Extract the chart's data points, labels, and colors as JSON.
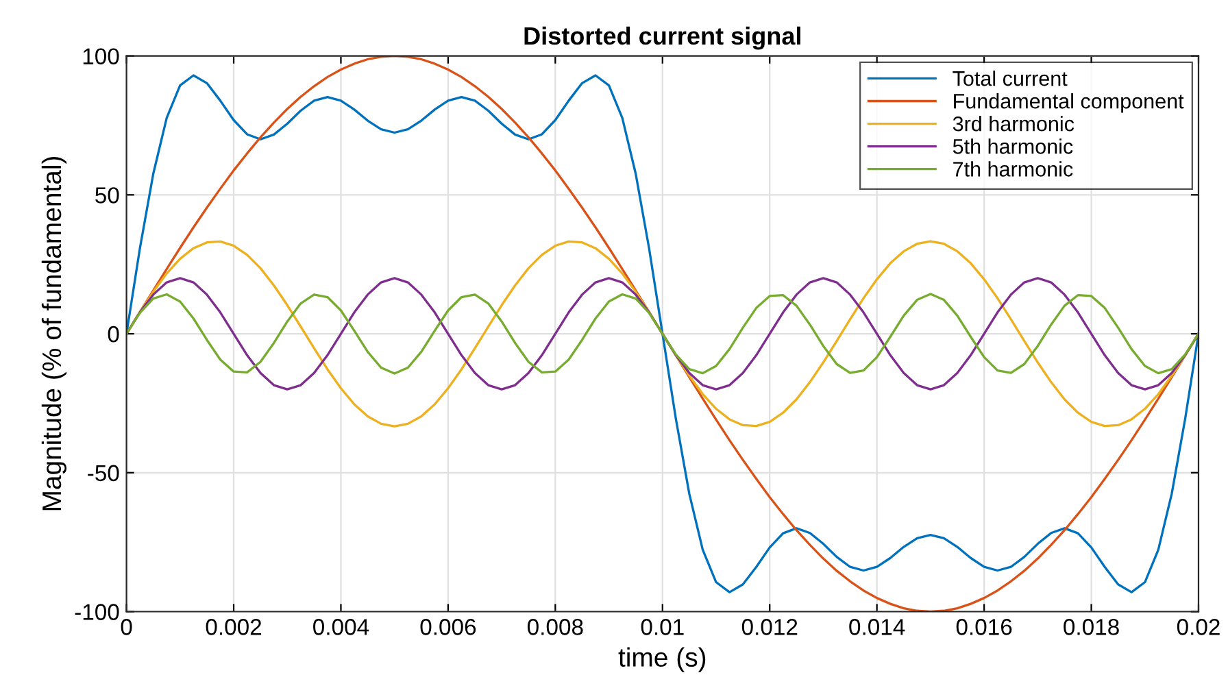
{
  "chart_data": {
    "type": "line",
    "title": "Distorted current signal",
    "xlabel": "time (s)",
    "ylabel": "Magnitude (% of fundamental)",
    "x": [
      0,
      0.00025,
      0.0005,
      0.00075,
      0.001,
      0.00125,
      0.0015,
      0.00175,
      0.002,
      0.00225,
      0.0025,
      0.00275,
      0.003,
      0.00325,
      0.0035,
      0.00375,
      0.004,
      0.00425,
      0.0045,
      0.00475,
      0.005,
      0.00525,
      0.0055,
      0.00575,
      0.006,
      0.00625,
      0.0065,
      0.00675,
      0.007,
      0.00725,
      0.0075,
      0.00775,
      0.008,
      0.00825,
      0.0085,
      0.00875,
      0.009,
      0.00925,
      0.0095,
      0.00975,
      0.01,
      0.01025,
      0.0105,
      0.01075,
      0.011,
      0.01125,
      0.0115,
      0.01175,
      0.012,
      0.01225,
      0.0125,
      0.01275,
      0.013,
      0.01325,
      0.0135,
      0.01375,
      0.014,
      0.01425,
      0.0145,
      0.01475,
      0.015,
      0.01525,
      0.0155,
      0.01575,
      0.016,
      0.01625,
      0.0165,
      0.01675,
      0.017,
      0.01725,
      0.0175,
      0.01775,
      0.018,
      0.01825,
      0.0185,
      0.01875,
      0.019,
      0.01925,
      0.0195,
      0.01975,
      0.02
    ],
    "series": [
      {
        "name": "Total current",
        "color": "#0072bd",
        "values": [
          0,
          30.7,
          57.6,
          77.7,
          89.4,
          93.0,
          90.2,
          83.9,
          76.9,
          71.8,
          70.0,
          71.7,
          75.6,
          80.3,
          83.9,
          85.2,
          83.9,
          80.7,
          76.7,
          73.6,
          72.4,
          73.6,
          76.7,
          80.7,
          83.9,
          85.2,
          83.9,
          80.3,
          75.6,
          71.7,
          70.0,
          71.8,
          76.9,
          83.9,
          90.2,
          93.0,
          89.4,
          77.7,
          57.6,
          30.7,
          0,
          -30.7,
          -57.6,
          -77.7,
          -89.4,
          -93.0,
          -90.2,
          -83.9,
          -76.9,
          -71.8,
          -70.0,
          -71.7,
          -75.6,
          -80.3,
          -83.9,
          -85.2,
          -83.9,
          -80.7,
          -76.7,
          -73.6,
          -72.4,
          -73.6,
          -76.7,
          -80.7,
          -83.9,
          -85.2,
          -83.9,
          -80.3,
          -75.6,
          -71.7,
          -70.0,
          -71.8,
          -76.9,
          -83.9,
          -90.2,
          -93.0,
          -89.4,
          -77.7,
          -57.6,
          -30.7,
          0
        ]
      },
      {
        "name": "Fundamental component",
        "color": "#d95319",
        "values": [
          0,
          7.8,
          15.6,
          23.3,
          30.9,
          38.3,
          45.4,
          52.2,
          58.8,
          64.9,
          70.7,
          76.0,
          80.9,
          85.3,
          89.1,
          92.4,
          95.1,
          97.2,
          98.8,
          99.7,
          100,
          99.7,
          98.8,
          97.2,
          95.1,
          92.4,
          89.1,
          85.3,
          80.9,
          76.0,
          70.7,
          64.9,
          58.8,
          52.2,
          45.4,
          38.3,
          30.9,
          23.3,
          15.6,
          7.8,
          0,
          -7.8,
          -15.6,
          -23.3,
          -30.9,
          -38.3,
          -45.4,
          -52.2,
          -58.8,
          -64.9,
          -70.7,
          -76.0,
          -80.9,
          -85.3,
          -89.1,
          -92.4,
          -95.1,
          -97.2,
          -98.8,
          -99.7,
          -100,
          -99.7,
          -98.8,
          -97.2,
          -95.1,
          -92.4,
          -89.1,
          -85.3,
          -80.9,
          -76.0,
          -70.7,
          -64.9,
          -58.8,
          -52.2,
          -45.4,
          -38.3,
          -30.9,
          -23.3,
          -15.6,
          -7.8,
          0
        ]
      },
      {
        "name": "3rd harmonic",
        "color": "#edb120",
        "values": [
          0,
          7.8,
          15.1,
          21.7,
          27.0,
          30.8,
          32.9,
          33.2,
          31.7,
          28.4,
          23.6,
          17.4,
          10.3,
          2.6,
          -5.2,
          -12.8,
          -19.6,
          -25.4,
          -29.7,
          -32.4,
          -33.3,
          -32.4,
          -29.7,
          -25.4,
          -19.6,
          -12.8,
          -5.2,
          2.6,
          10.3,
          17.4,
          23.6,
          28.4,
          31.7,
          33.2,
          32.9,
          30.8,
          27.0,
          21.7,
          15.1,
          7.8,
          0,
          -7.8,
          -15.1,
          -21.7,
          -27.0,
          -30.8,
          -32.9,
          -33.2,
          -31.7,
          -28.4,
          -23.6,
          -17.4,
          -10.3,
          -2.6,
          5.2,
          12.8,
          19.6,
          25.4,
          29.7,
          32.4,
          33.3,
          32.4,
          29.7,
          25.4,
          19.6,
          12.8,
          5.2,
          -2.6,
          -10.3,
          -17.4,
          -23.6,
          -28.4,
          -31.7,
          -33.2,
          -32.9,
          -30.8,
          -27.0,
          -21.7,
          -15.1,
          -7.8,
          0
        ]
      },
      {
        "name": "5th harmonic",
        "color": "#7e2f8e",
        "values": [
          0,
          7.7,
          14.1,
          18.5,
          20,
          18.5,
          14.1,
          7.7,
          0,
          -7.7,
          -14.1,
          -18.5,
          -20,
          -18.5,
          -14.1,
          -7.7,
          0,
          7.7,
          14.1,
          18.5,
          20,
          18.5,
          14.1,
          7.7,
          0,
          -7.7,
          -14.1,
          -18.5,
          -20,
          -18.5,
          -14.1,
          -7.7,
          0,
          7.7,
          14.1,
          18.5,
          20,
          18.5,
          14.1,
          7.7,
          0,
          -7.7,
          -14.1,
          -18.5,
          -20,
          -18.5,
          -14.1,
          -7.7,
          0,
          7.7,
          14.1,
          18.5,
          20,
          18.5,
          14.1,
          7.7,
          0,
          -7.7,
          -14.1,
          -18.5,
          -20,
          -18.5,
          -14.1,
          -7.7,
          0,
          7.7,
          14.1,
          18.5,
          20,
          18.5,
          14.1,
          7.7,
          0,
          -7.7,
          -14.1,
          -18.5,
          -20,
          -18.5,
          -14.1,
          -7.7,
          0
        ]
      },
      {
        "name": "7th harmonic",
        "color": "#77ac30",
        "values": [
          0,
          7.5,
          12.7,
          14.2,
          11.6,
          5.5,
          -2.2,
          -9.3,
          -13.6,
          -13.9,
          -10.1,
          -3.3,
          4.4,
          10.9,
          14.1,
          13.2,
          8.4,
          1.1,
          -6.5,
          -12.2,
          -14.3,
          -12.2,
          -6.5,
          1.1,
          8.4,
          13.2,
          14.1,
          10.9,
          4.4,
          -3.3,
          -10.1,
          -13.9,
          -13.6,
          -9.3,
          -2.2,
          5.5,
          11.6,
          14.2,
          12.7,
          7.5,
          0,
          -7.5,
          -12.7,
          -14.2,
          -11.6,
          -5.5,
          2.2,
          9.3,
          13.6,
          13.9,
          10.1,
          3.3,
          -4.4,
          -10.9,
          -14.1,
          -13.2,
          -8.4,
          -1.1,
          6.5,
          12.2,
          14.3,
          12.2,
          6.5,
          -1.1,
          -8.4,
          -13.2,
          -14.1,
          -10.9,
          -4.4,
          3.3,
          10.1,
          13.9,
          13.6,
          9.3,
          2.2,
          -5.5,
          -11.6,
          -14.2,
          -12.7,
          -7.5,
          0
        ]
      }
    ],
    "xlim": [
      0,
      0.02
    ],
    "xticks": [
      0,
      0.002,
      0.004,
      0.006,
      0.008,
      0.01,
      0.012,
      0.014,
      0.016,
      0.018,
      0.02
    ],
    "ylim": [
      -100,
      100
    ],
    "yticks": [
      -100,
      -50,
      0,
      50,
      100
    ],
    "grid": true,
    "legend": "top right",
    "marker": "none",
    "line_style": "solid"
  }
}
